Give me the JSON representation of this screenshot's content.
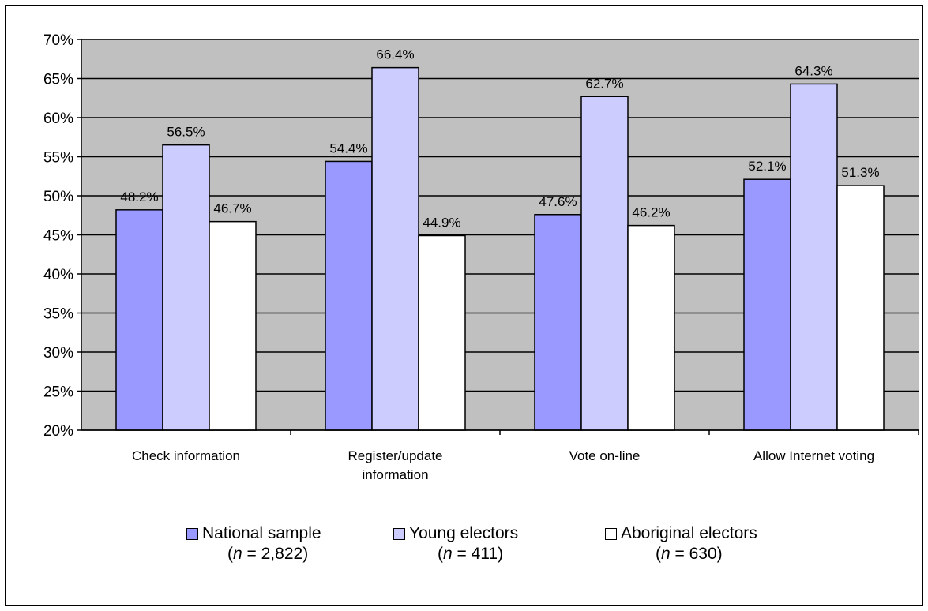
{
  "chart_data": {
    "type": "bar",
    "categories": [
      [
        "Check information"
      ],
      [
        "Register/update",
        "information"
      ],
      [
        "Vote on-line"
      ],
      [
        "Allow Internet voting"
      ]
    ],
    "series": [
      {
        "name": "National sample",
        "n_label": "2,822",
        "color": "#9999ff",
        "values": [
          48.2,
          54.4,
          47.6,
          52.1
        ],
        "labels": [
          "48.2%",
          "54.4%",
          "47.6%",
          "52.1%"
        ]
      },
      {
        "name": "Young electors",
        "n_label": "411",
        "color": "#ccccff",
        "values": [
          56.5,
          66.4,
          62.7,
          64.3
        ],
        "labels": [
          "56.5%",
          "66.4%",
          "62.7%",
          "64.3%"
        ]
      },
      {
        "name": "Aboriginal electors",
        "n_label": "630",
        "color": "#ffffff",
        "values": [
          46.7,
          44.9,
          46.2,
          51.3
        ],
        "labels": [
          "46.7%",
          "44.9%",
          "46.2%",
          "51.3%"
        ]
      }
    ],
    "ylim": [
      20,
      70
    ],
    "yticks": [
      20,
      25,
      30,
      35,
      40,
      45,
      50,
      55,
      60,
      65,
      70
    ],
    "ytick_labels": [
      "20%",
      "25%",
      "30%",
      "35%",
      "40%",
      "45%",
      "50%",
      "55%",
      "60%",
      "65%",
      "70%"
    ],
    "plot_background": "#c0c0c0",
    "grid": true,
    "legend": "bottom",
    "n_prefix": "n",
    "n_eq": " = "
  }
}
